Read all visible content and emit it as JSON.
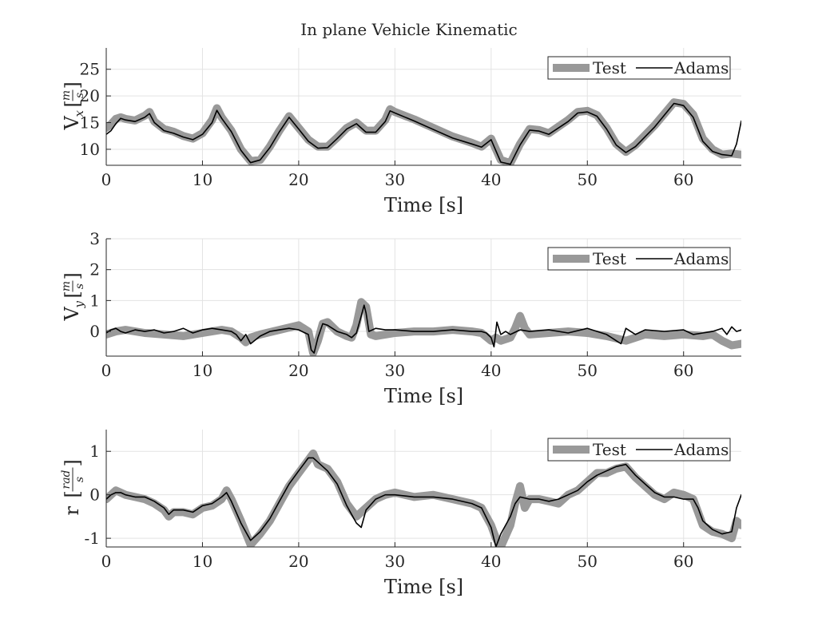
{
  "chart_data": {
    "title": "In plane Vehicle Kinematic",
    "legend_position": "top-right",
    "colors": {
      "Test": "#999999",
      "Adams": "#000000"
    },
    "panels": [
      {
        "type": "line",
        "xlabel": "Time [s]",
        "ylabel": {
          "base": "V",
          "sub": "x",
          "num": "m",
          "den": "s"
        },
        "xlim": [
          0,
          66
        ],
        "ylim": [
          7,
          29
        ],
        "grid": true,
        "legend": [
          "Test",
          "Adams"
        ],
        "xticks": [
          0,
          10,
          20,
          30,
          40,
          50,
          60
        ],
        "yticks": [
          10,
          15,
          20,
          25
        ],
        "series": [
          {
            "name": "Test",
            "x": [
              0,
              0.5,
              1,
              1.5,
              2,
              3,
              4,
              4.5,
              5,
              6,
              7,
              8,
              9,
              10,
              11,
              11.5,
              12,
              13,
              14,
              15,
              16,
              17,
              18,
              19,
              20,
              21,
              22,
              23,
              24,
              25,
              26,
              27,
              28,
              29,
              29.5,
              30,
              32,
              34,
              36,
              38,
              39,
              40,
              41,
              42,
              43,
              44,
              45,
              46,
              48,
              49,
              50,
              51,
              52,
              53,
              54,
              55,
              57,
              59,
              60,
              61,
              62,
              63,
              64,
              65,
              66
            ],
            "y": [
              14,
              14.7,
              15.7,
              16,
              15.7,
              15.4,
              16.3,
              17,
              15.2,
              13.8,
              13.3,
              12.5,
              12,
              13,
              15.5,
              17.7,
              16,
              13.5,
              10,
              7.8,
              8,
              10.5,
              13.5,
              16.2,
              14,
              11.8,
              10.5,
              10.5,
              12.2,
              14,
              15,
              13.5,
              13.5,
              15.5,
              17.5,
              17,
              15.6,
              14,
              12.4,
              11.2,
              10.5,
              12,
              8,
              7.4,
              11,
              13.8,
              13.6,
              13,
              15.5,
              17,
              17.2,
              16.4,
              14,
              11,
              9.5,
              10.8,
              14.5,
              18.8,
              18.5,
              16.5,
              12,
              10,
              9,
              9.2,
              9
            ],
            "width": 10
          },
          {
            "name": "Adams",
            "x": [
              0,
              0.5,
              1,
              1.5,
              2,
              3,
              4,
              4.5,
              5,
              6,
              7,
              8,
              9,
              10,
              11,
              11.5,
              12,
              13,
              14,
              15,
              16,
              17,
              18,
              19,
              20,
              21,
              22,
              23,
              24,
              25,
              26,
              27,
              28,
              29,
              29.5,
              30,
              32,
              34,
              36,
              38,
              39,
              40,
              41,
              42,
              43,
              44,
              45,
              46,
              48,
              49,
              50,
              51,
              52,
              53,
              54,
              55,
              57,
              59,
              60,
              61,
              62,
              63,
              64,
              65,
              65.5,
              66
            ],
            "y": [
              12.8,
              13.5,
              14.8,
              15.8,
              15.5,
              15.2,
              16,
              16.7,
              15,
              13.5,
              13,
              12.3,
              11.8,
              12.8,
              15,
              17.3,
              15.8,
              13.3,
              9.8,
              7.5,
              8,
              10.3,
              13.3,
              16,
              13.8,
              11.5,
              10.2,
              10.3,
              12,
              13.8,
              14.8,
              13.2,
              13.2,
              15.2,
              17.2,
              16.8,
              15.3,
              13.7,
              12.1,
              11,
              10.4,
              11.8,
              7.6,
              7.2,
              10.8,
              13.6,
              13.4,
              12.8,
              15.2,
              16.8,
              17,
              16.2,
              13.8,
              10.8,
              9.4,
              10.5,
              14.2,
              18.6,
              18.2,
              16,
              11.5,
              9.6,
              9,
              8.8,
              11,
              15.3
            ],
            "width": 1.6
          }
        ]
      },
      {
        "type": "line",
        "xlabel": "Time [s]",
        "ylabel": {
          "base": "V",
          "sub": "y",
          "num": "m",
          "den": "s"
        },
        "xlim": [
          0,
          66
        ],
        "ylim": [
          -0.8,
          3
        ],
        "grid": true,
        "legend": [
          "Test",
          "Adams"
        ],
        "xticks": [
          0,
          10,
          20,
          30,
          40,
          50,
          60
        ],
        "yticks": [
          0,
          1,
          2,
          3
        ],
        "series": [
          {
            "name": "Test",
            "x": [
              0,
              1,
              2,
              4,
              6,
              8,
              10,
              12,
              13,
              14,
              14.5,
              15,
              16,
              18,
              20,
              21,
              21.5,
              22,
              22.5,
              23,
              24,
              25,
              25.5,
              26,
              26.5,
              27,
              27.5,
              28,
              30,
              32,
              34,
              36,
              38,
              39,
              40,
              40.5,
              41,
              42,
              42.5,
              43,
              43.5,
              44,
              46,
              48,
              50,
              52,
              54,
              56,
              58,
              60,
              62,
              63,
              64,
              65,
              66
            ],
            "y": [
              -0.1,
              0,
              0.05,
              -0.05,
              -0.1,
              -0.15,
              -0.05,
              0.05,
              0,
              -0.2,
              -0.35,
              -0.2,
              -0.1,
              0.05,
              0.2,
              0,
              -0.7,
              -0.3,
              0.25,
              0.3,
              0,
              -0.15,
              -0.2,
              0.2,
              0.95,
              0.8,
              -0.1,
              -0.15,
              -0.05,
              0,
              0,
              0.05,
              0,
              -0.05,
              -0.3,
              -0.2,
              -0.3,
              -0.2,
              0.1,
              0.5,
              0.1,
              -0.1,
              -0.05,
              0,
              -0.05,
              -0.15,
              -0.3,
              -0.1,
              -0.15,
              -0.1,
              -0.15,
              -0.1,
              -0.3,
              -0.45,
              -0.4
            ],
            "width": 10
          },
          {
            "name": "Adams",
            "x": [
              0,
              0.5,
              1,
              1.5,
              2,
              3,
              4,
              5,
              6,
              7,
              8,
              9,
              10,
              11,
              12,
              13,
              13.5,
              14,
              14.5,
              15,
              16,
              17,
              18,
              19,
              20,
              21,
              21.3,
              21.6,
              22,
              22.5,
              23,
              24,
              25,
              25.5,
              26,
              26.5,
              26.8,
              27,
              27.3,
              28,
              29,
              30,
              32,
              34,
              36,
              38,
              39,
              39.5,
              40,
              40.3,
              40.6,
              41,
              41.5,
              42,
              43,
              44,
              46,
              48,
              50,
              52,
              53,
              53.5,
              54,
              55,
              56,
              58,
              60,
              61,
              62,
              63,
              64,
              64.5,
              65,
              65.5,
              66
            ],
            "y": [
              -0.05,
              0.05,
              0.1,
              0,
              -0.05,
              0.05,
              0,
              0.05,
              -0.05,
              0,
              0.1,
              -0.05,
              0.05,
              0.1,
              0.05,
              0,
              -0.1,
              -0.3,
              -0.1,
              -0.4,
              -0.15,
              0,
              0.05,
              0.1,
              0.05,
              -0.1,
              -0.6,
              -0.7,
              -0.2,
              0.25,
              0.2,
              0,
              -0.1,
              -0.2,
              -0.05,
              0.5,
              0.85,
              0.6,
              0,
              0.1,
              0.05,
              0.05,
              0,
              0,
              0.05,
              0,
              0,
              -0.05,
              -0.2,
              -0.5,
              0.3,
              -0.1,
              0,
              -0.1,
              0.05,
              0,
              0.05,
              -0.05,
              0.1,
              -0.1,
              -0.3,
              -0.4,
              0.1,
              -0.1,
              0.05,
              0,
              0.05,
              -0.1,
              -0.05,
              0,
              0.1,
              -0.1,
              0.15,
              0,
              0.05
            ],
            "width": 1.6
          }
        ]
      },
      {
        "type": "line",
        "xlabel": "Time [s]",
        "ylabel": {
          "base": "r",
          "sub": "",
          "num": "rad",
          "den": "s"
        },
        "xlim": [
          0,
          66
        ],
        "ylim": [
          -1.2,
          1.5
        ],
        "grid": true,
        "legend": [
          "Test",
          "Adams"
        ],
        "xticks": [
          0,
          10,
          20,
          30,
          40,
          50,
          60
        ],
        "yticks": [
          -1,
          0,
          1
        ],
        "series": [
          {
            "name": "Test",
            "x": [
              0,
              0.5,
              1,
              1.5,
              2,
              3,
              4,
              5,
              6,
              6.5,
              7,
              8,
              9,
              10,
              11,
              12,
              12.5,
              13,
              14,
              15,
              16,
              17,
              18,
              19,
              20,
              21,
              21.5,
              22,
              23,
              24,
              25,
              26,
              26.5,
              27,
              28,
              29,
              30,
              32,
              34,
              36,
              38,
              39,
              40,
              40.5,
              41,
              42,
              42.5,
              43,
              43.5,
              44,
              45,
              46,
              47,
              48,
              49,
              50,
              51,
              52,
              53,
              54,
              55,
              56,
              57,
              58,
              59,
              60,
              61,
              61.5,
              62,
              63,
              64,
              65,
              65.5,
              66
            ],
            "y": [
              -0.1,
              0,
              0.1,
              0.05,
              0,
              -0.05,
              -0.1,
              -0.2,
              -0.35,
              -0.5,
              -0.4,
              -0.4,
              -0.45,
              -0.3,
              -0.25,
              -0.1,
              0.1,
              -0.1,
              -0.6,
              -1.15,
              -0.9,
              -0.6,
              -0.2,
              0.2,
              0.5,
              0.8,
              0.95,
              0.7,
              0.6,
              0.3,
              -0.2,
              -0.5,
              -0.4,
              -0.3,
              -0.1,
              0,
              0.05,
              -0.05,
              0,
              -0.1,
              -0.2,
              -0.3,
              -0.7,
              -1.0,
              -1.2,
              -0.7,
              -0.2,
              0.2,
              -0.3,
              -0.1,
              -0.1,
              -0.15,
              -0.2,
              0,
              0.1,
              0.3,
              0.5,
              0.5,
              0.6,
              0.65,
              0.4,
              0.2,
              0.0,
              -0.1,
              0.05,
              0,
              -0.1,
              -0.4,
              -0.7,
              -0.85,
              -0.9,
              -1.0,
              -0.6,
              -0.7
            ],
            "width": 10
          },
          {
            "name": "Adams",
            "x": [
              0,
              0.5,
              1,
              1.5,
              2,
              3,
              4,
              5,
              6,
              6.5,
              7,
              8,
              9,
              10,
              11,
              12,
              12.5,
              13,
              14,
              15,
              16,
              17,
              18,
              19,
              20,
              21,
              21.5,
              22,
              23,
              24,
              25,
              26,
              26.5,
              27,
              28,
              29,
              30,
              32,
              34,
              36,
              38,
              39,
              40,
              40.5,
              41,
              42,
              42.5,
              43,
              44,
              45,
              46,
              47,
              48,
              49,
              50,
              51,
              52,
              53,
              54,
              55,
              56,
              57,
              58,
              59,
              60,
              61,
              61.5,
              62,
              63,
              64,
              65,
              65.5,
              66
            ],
            "y": [
              -0.1,
              0,
              0.05,
              0.05,
              0,
              -0.05,
              -0.05,
              -0.15,
              -0.3,
              -0.45,
              -0.35,
              -0.35,
              -0.4,
              -0.25,
              -0.2,
              -0.05,
              0.05,
              -0.15,
              -0.65,
              -1.05,
              -0.85,
              -0.55,
              -0.15,
              0.25,
              0.55,
              0.85,
              0.85,
              0.75,
              0.55,
              0.25,
              -0.25,
              -0.65,
              -0.75,
              -0.35,
              -0.1,
              0,
              0,
              -0.05,
              -0.05,
              -0.1,
              -0.2,
              -0.3,
              -0.75,
              -1.2,
              -0.9,
              -0.5,
              -0.2,
              -0.05,
              -0.1,
              -0.1,
              -0.15,
              -0.1,
              0,
              0.1,
              0.3,
              0.45,
              0.55,
              0.65,
              0.7,
              0.45,
              0.25,
              0.05,
              -0.05,
              -0.05,
              -0.1,
              -0.1,
              -0.3,
              -0.6,
              -0.8,
              -0.9,
              -0.85,
              -0.3,
              0
            ],
            "width": 1.6
          }
        ]
      }
    ]
  }
}
